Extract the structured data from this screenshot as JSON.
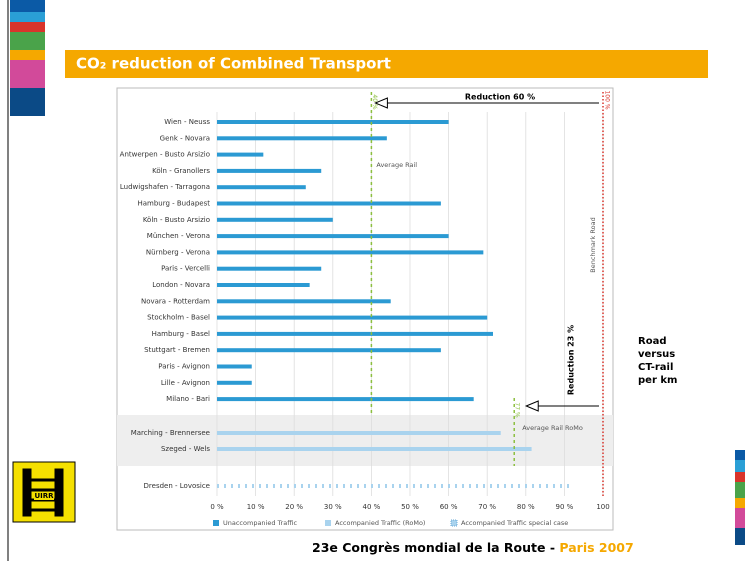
{
  "slide_title": "CO₂ reduction of Combined Transport",
  "side_note": [
    "Road",
    "versus",
    "CT-rail",
    "per km"
  ],
  "footer": {
    "text": "23e Congrès mondial de la Route - ",
    "highlight": "Paris 2007"
  },
  "logo": "UIRR",
  "chart_data": {
    "type": "hbar",
    "categories": [
      "Wien - Neuss",
      "Genk - Novara",
      "Antwerpen - Busto Arsizio",
      "Köln - Granollers",
      "Ludwigshafen - Tarragona",
      "Hamburg - Budapest",
      "Köln - Busto Arsizio",
      "München - Verona",
      "Nürnberg - Verona",
      "Paris - Vercelli",
      "London - Novara",
      "Novara - Rotterdam",
      "Stockholm - Basel",
      "Hamburg - Basel",
      "Stuttgart - Bremen",
      "Paris - Avignon",
      "Lille - Avignon",
      "Milano - Bari",
      "Marching - Brennersee",
      "Szeged - Wels",
      "Dresden - Lovosice"
    ],
    "series": [
      {
        "name": "Unaccompanied Traffic",
        "color": "#2b9ad3",
        "style": "solid",
        "values": [
          60,
          44,
          12,
          27,
          23,
          58,
          30,
          60,
          69,
          27,
          24,
          45,
          70,
          71.5,
          58,
          9,
          9,
          66.5,
          null,
          null,
          null
        ]
      },
      {
        "name": "Accompanied Traffic (RoMo)",
        "color": "#a9d3ee",
        "style": "solid",
        "values": [
          null,
          null,
          null,
          null,
          null,
          null,
          null,
          null,
          null,
          null,
          null,
          null,
          null,
          null,
          null,
          null,
          null,
          null,
          73.5,
          81.5,
          null
        ]
      },
      {
        "name": "Accompanied Traffic special case",
        "color": "#a9d3ee",
        "style": "dotted",
        "values": [
          null,
          null,
          null,
          null,
          null,
          null,
          null,
          null,
          null,
          null,
          null,
          null,
          null,
          null,
          null,
          null,
          null,
          null,
          null,
          null,
          92
        ]
      }
    ],
    "xlim": [
      0,
      100
    ],
    "xticks": [
      {
        "value": 0,
        "label": "0 %"
      },
      {
        "value": 10,
        "label": "10 %"
      },
      {
        "value": 20,
        "label": "20 %"
      },
      {
        "value": 30,
        "label": "30 %"
      },
      {
        "value": 40,
        "label": "40 %"
      },
      {
        "value": 50,
        "label": "50 %"
      },
      {
        "value": 60,
        "label": "60 %"
      },
      {
        "value": 70,
        "label": "70 %"
      },
      {
        "value": 80,
        "label": "80 %"
      },
      {
        "value": 90,
        "label": "90 %"
      },
      {
        "value": 100,
        "label": "100"
      }
    ],
    "grid": true,
    "reference_lines": [
      {
        "value": 40,
        "label": "40 %",
        "name": "Average Rail",
        "color": "#8cbf3f"
      },
      {
        "value": 77,
        "label": "77 %",
        "name": "Average Rail RoMo",
        "color": "#8cbf3f"
      },
      {
        "value": 100,
        "label": "100 %",
        "name": "Benchmark Road",
        "color": "#d9342b"
      }
    ],
    "annotations": [
      "Reduction 60 %",
      "Reduction 23 %"
    ]
  }
}
